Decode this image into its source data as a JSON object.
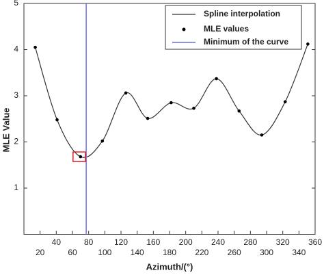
{
  "chart_data": {
    "type": "line",
    "xlabel": "Azimuth/(°)",
    "ylabel": "MLE Value",
    "x": [
      14,
      41,
      70,
      97,
      126,
      153,
      182,
      210,
      238,
      266,
      294,
      323,
      351
    ],
    "values": [
      4.05,
      2.48,
      1.68,
      2.02,
      3.06,
      2.51,
      2.85,
      2.73,
      3.37,
      2.67,
      2.15,
      2.87,
      4.12
    ],
    "minimum_x": 77,
    "series": [
      {
        "name": "Spline interpolation",
        "color": "#333333"
      },
      {
        "name": "MLE values",
        "color": "#000000"
      },
      {
        "name": "Minimum of the curve",
        "color": "#6f6fd6"
      }
    ],
    "highlight_color": "#e02020",
    "xlim": [
      0,
      360
    ],
    "xticks": [
      20,
      40,
      60,
      80,
      100,
      120,
      140,
      160,
      180,
      200,
      220,
      240,
      260,
      280,
      300,
      320,
      340,
      360
    ],
    "ylim": [
      0,
      5
    ],
    "yticks": [
      1,
      2,
      3,
      4,
      5
    ],
    "legend": "upper right"
  }
}
